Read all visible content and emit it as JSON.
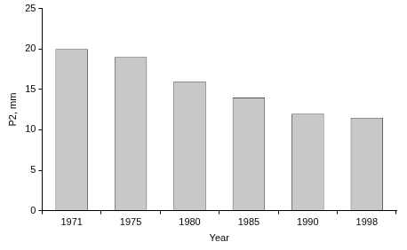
{
  "chart_data": {
    "type": "bar",
    "x_label": "Year",
    "y_label": "P2, mm",
    "categories": [
      "1971",
      "1975",
      "1980",
      "1985",
      "1990",
      "1998"
    ],
    "values": [
      20,
      19,
      16,
      14,
      12,
      11.5
    ],
    "color": "#c8c8c8",
    "ylim": [
      0,
      25
    ],
    "yticks": [
      0,
      5,
      10,
      15,
      20,
      25
    ],
    "grid": false
  }
}
